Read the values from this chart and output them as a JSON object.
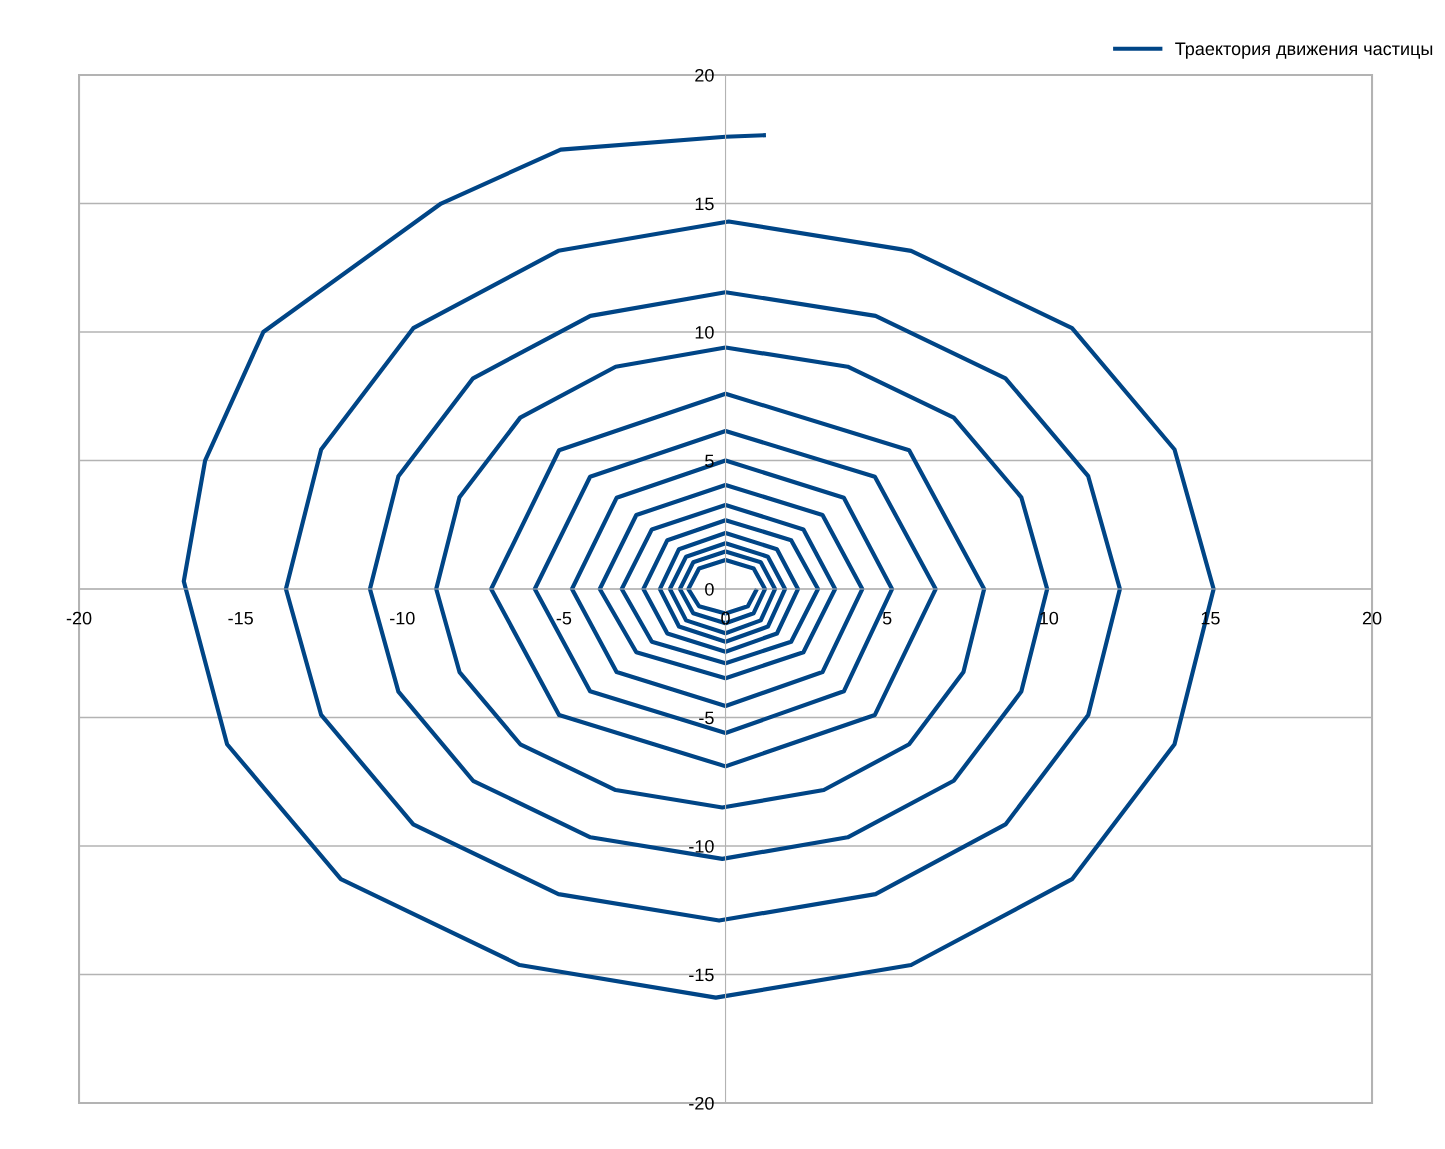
{
  "chart_data": {
    "type": "line",
    "legend": "top right",
    "grid": "y",
    "marker": "none",
    "line_style": "solid",
    "xlim": [
      -20,
      20
    ],
    "xticks": [
      -20,
      -15,
      -10,
      -5,
      0,
      5,
      10,
      15,
      20
    ],
    "ylim": [
      -20,
      20
    ],
    "yticks": [
      -20,
      -15,
      -10,
      -5,
      0,
      5,
      10,
      15,
      20
    ],
    "series": [
      {
        "name": "Траектория движения частицы",
        "color": "#004586",
        "x": [
          0.97,
          0.69,
          0,
          -0.82,
          -1.15,
          -0.82,
          0,
          0.87,
          1.22,
          0.87,
          0,
          -1.0,
          -1.41,
          -1.0,
          0,
          1.09,
          1.53,
          1.09,
          0,
          -1.22,
          -1.72,
          -1.22,
          0,
          1.31,
          1.84,
          1.31,
          0,
          -1.44,
          -2.03,
          -1.44,
          0,
          1.59,
          2.24,
          1.59,
          0,
          -1.8,
          -2.54,
          -1.8,
          0,
          2.03,
          2.86,
          2.03,
          0,
          -2.28,
          -3.21,
          -2.28,
          0,
          2.41,
          3.39,
          2.41,
          0,
          -2.76,
          -3.89,
          -2.76,
          0,
          3.0,
          4.23,
          3.0,
          0,
          -3.37,
          -4.75,
          -3.37,
          0,
          3.66,
          5.15,
          3.66,
          0,
          -4.19,
          -5.9,
          -4.19,
          0,
          4.62,
          6.5,
          4.62,
          0,
          -5.15,
          -7.25,
          -5.15,
          0,
          5.68,
          8.0,
          7.36,
          5.68,
          3.04,
          -0.1,
          -3.4,
          -6.35,
          -8.23,
          -8.95,
          -8.23,
          -6.35,
          -3.4,
          0,
          3.78,
          7.06,
          9.15,
          9.95,
          9.15,
          7.06,
          3.78,
          -0.1,
          -4.18,
          -7.81,
          -10.12,
          -11.0,
          -10.12,
          -7.81,
          -4.18,
          0,
          4.64,
          8.66,
          11.22,
          12.2,
          11.22,
          8.66,
          4.64,
          -0.2,
          -5.17,
          -9.66,
          -12.51,
          -13.6,
          -12.51,
          -9.66,
          -5.17,
          0.1,
          5.74,
          10.72,
          13.89,
          15.1,
          13.89,
          10.72,
          5.74,
          -0.3,
          -6.37,
          -11.9,
          -15.42,
          -16.76,
          -16.1,
          -14.3,
          -8.8,
          -5.1,
          0,
          1.25
        ],
        "values": [
          0,
          -0.67,
          -0.95,
          -0.67,
          0,
          0.8,
          1.13,
          0.8,
          0,
          -0.94,
          -1.33,
          -0.94,
          0,
          1.04,
          1.46,
          1.04,
          0,
          -1.22,
          -1.72,
          -1.22,
          0,
          1.26,
          1.78,
          1.26,
          0,
          -1.46,
          -2.05,
          -1.46,
          0,
          1.55,
          2.18,
          1.55,
          0,
          -1.73,
          -2.44,
          -1.73,
          0,
          1.9,
          2.68,
          1.9,
          0,
          -2.05,
          -2.89,
          -2.05,
          0,
          2.32,
          3.27,
          2.32,
          0,
          -2.46,
          -3.47,
          -2.46,
          0,
          2.88,
          4.05,
          2.88,
          0,
          -3.23,
          -4.55,
          -3.23,
          0,
          3.55,
          5.0,
          3.55,
          0,
          -3.98,
          -5.6,
          -3.98,
          0,
          4.37,
          6.15,
          4.37,
          0,
          -4.9,
          -6.9,
          -4.9,
          0,
          5.4,
          7.6,
          5.4,
          0,
          -3.23,
          -6.04,
          -7.82,
          -8.5,
          -7.82,
          -6.04,
          -3.23,
          0,
          3.57,
          6.67,
          8.65,
          9.4,
          8.65,
          6.67,
          3.57,
          0,
          -3.99,
          -7.46,
          -9.66,
          -10.5,
          -9.66,
          -7.46,
          -3.99,
          0,
          4.39,
          8.2,
          10.63,
          11.55,
          10.63,
          8.2,
          4.39,
          0,
          -4.9,
          -9.16,
          -11.87,
          -12.9,
          -11.87,
          -9.16,
          -4.9,
          0,
          5.43,
          10.15,
          13.16,
          14.3,
          13.16,
          10.15,
          5.43,
          0,
          -6.04,
          -11.29,
          -14.63,
          -15.9,
          -14.63,
          -11.29,
          -6.04,
          0.3,
          5.0,
          10.0,
          15.0,
          17.1,
          17.6,
          17.66
        ]
      }
    ]
  }
}
